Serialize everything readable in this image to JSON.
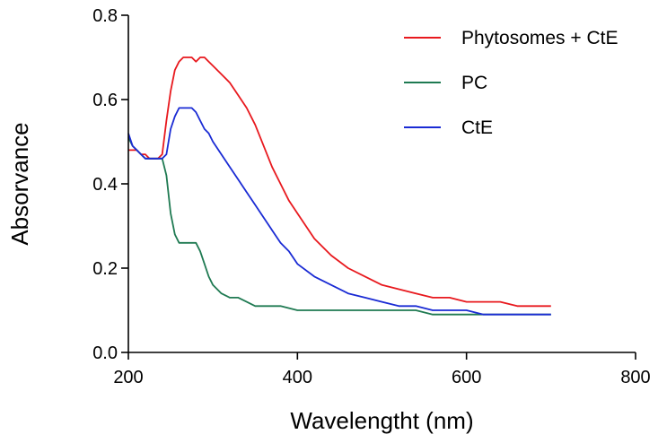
{
  "chart_data": {
    "type": "line",
    "title": "",
    "xlabel": "Wavelengtht  (nm)",
    "ylabel": "Absorvance",
    "xlim": [
      200,
      800
    ],
    "ylim": [
      0.0,
      0.8
    ],
    "x_ticks": [
      200,
      400,
      600,
      800
    ],
    "x_tick_labels": [
      "200",
      "400",
      "600",
      "800"
    ],
    "y_ticks": [
      0.0,
      0.2,
      0.4,
      0.6,
      0.8
    ],
    "y_tick_labels": [
      "0.0",
      "0.2",
      "0.4",
      "0.6",
      "0.8"
    ],
    "grid": false,
    "legend_position": "top-right",
    "series": [
      {
        "name": "Phytosomes + CtE",
        "color": "#e8191e",
        "x": [
          200,
          205,
          210,
          215,
          220,
          225,
          230,
          235,
          240,
          245,
          250,
          255,
          260,
          265,
          270,
          275,
          280,
          285,
          290,
          295,
          300,
          310,
          320,
          330,
          340,
          350,
          360,
          370,
          380,
          390,
          400,
          420,
          440,
          460,
          480,
          500,
          520,
          540,
          560,
          580,
          600,
          620,
          640,
          660,
          680,
          700
        ],
        "y": [
          0.48,
          0.48,
          0.48,
          0.47,
          0.47,
          0.46,
          0.46,
          0.46,
          0.47,
          0.55,
          0.62,
          0.67,
          0.69,
          0.7,
          0.7,
          0.7,
          0.69,
          0.7,
          0.7,
          0.69,
          0.68,
          0.66,
          0.64,
          0.61,
          0.58,
          0.54,
          0.49,
          0.44,
          0.4,
          0.36,
          0.33,
          0.27,
          0.23,
          0.2,
          0.18,
          0.16,
          0.15,
          0.14,
          0.13,
          0.13,
          0.12,
          0.12,
          0.12,
          0.11,
          0.11,
          0.11
        ]
      },
      {
        "name": "PC",
        "color": "#1f7a52",
        "x": [
          200,
          205,
          210,
          215,
          220,
          225,
          230,
          235,
          240,
          245,
          250,
          255,
          260,
          265,
          270,
          275,
          280,
          285,
          290,
          295,
          300,
          310,
          320,
          330,
          340,
          350,
          360,
          380,
          400,
          420,
          440,
          460,
          480,
          500,
          520,
          540,
          560,
          580,
          600,
          620,
          640,
          660,
          680,
          700
        ],
        "y": [
          0.51,
          0.49,
          0.48,
          0.47,
          0.46,
          0.46,
          0.46,
          0.46,
          0.46,
          0.42,
          0.33,
          0.28,
          0.26,
          0.26,
          0.26,
          0.26,
          0.26,
          0.24,
          0.21,
          0.18,
          0.16,
          0.14,
          0.13,
          0.13,
          0.12,
          0.11,
          0.11,
          0.11,
          0.1,
          0.1,
          0.1,
          0.1,
          0.1,
          0.1,
          0.1,
          0.1,
          0.09,
          0.09,
          0.09,
          0.09,
          0.09,
          0.09,
          0.09,
          0.09
        ]
      },
      {
        "name": "CtE",
        "color": "#1a2bd4",
        "x": [
          200,
          205,
          210,
          215,
          220,
          225,
          230,
          235,
          240,
          245,
          250,
          255,
          260,
          265,
          270,
          275,
          280,
          285,
          290,
          295,
          300,
          310,
          320,
          330,
          340,
          350,
          360,
          370,
          380,
          390,
          400,
          420,
          440,
          460,
          480,
          500,
          520,
          540,
          560,
          580,
          600,
          620,
          640,
          660,
          680,
          700
        ],
        "y": [
          0.52,
          0.49,
          0.48,
          0.47,
          0.46,
          0.46,
          0.46,
          0.46,
          0.46,
          0.47,
          0.53,
          0.56,
          0.58,
          0.58,
          0.58,
          0.58,
          0.57,
          0.55,
          0.53,
          0.52,
          0.5,
          0.47,
          0.44,
          0.41,
          0.38,
          0.35,
          0.32,
          0.29,
          0.26,
          0.24,
          0.21,
          0.18,
          0.16,
          0.14,
          0.13,
          0.12,
          0.11,
          0.11,
          0.1,
          0.1,
          0.1,
          0.09,
          0.09,
          0.09,
          0.09,
          0.09
        ]
      }
    ]
  }
}
